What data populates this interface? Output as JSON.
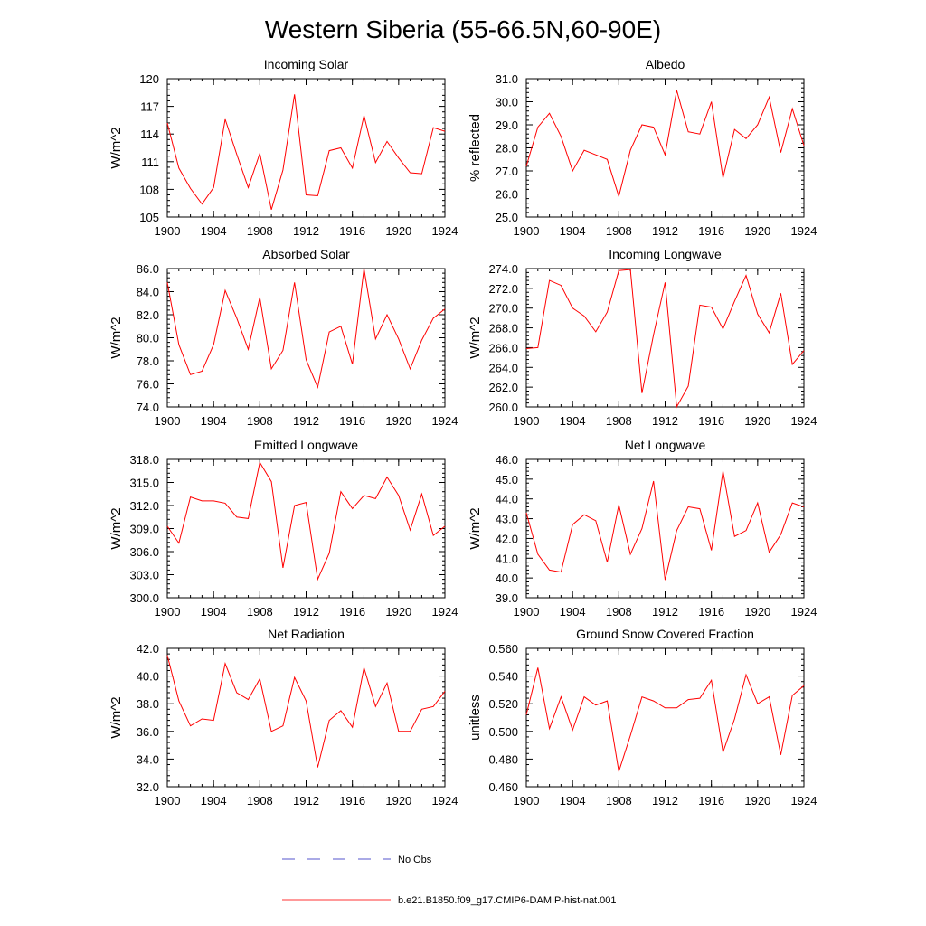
{
  "figure": {
    "title": "Western Siberia (55-66.5N,60-90E)",
    "legend": [
      {
        "label": "No Obs",
        "color": "#5555cc",
        "style": "dashed"
      },
      {
        "label": "b.e21.B1850.f09_g17.CMIP6-DAMIP-hist-nat.001",
        "color": "#ff3333",
        "style": "solid"
      }
    ]
  },
  "chart_data": [
    {
      "type": "line",
      "title": "Incoming Solar",
      "ylabel": "W/m^2",
      "xlim": [
        1900,
        1924
      ],
      "ylim": [
        105,
        120
      ],
      "yticks": [
        "105",
        "108",
        "111",
        "114",
        "117",
        "120"
      ],
      "xticks": [
        "1900",
        "1904",
        "1908",
        "1912",
        "1916",
        "1920",
        "1924"
      ],
      "color": "#ff0000",
      "x": [
        1900,
        1901,
        1902,
        1903,
        1904,
        1905,
        1906,
        1907,
        1908,
        1909,
        1910,
        1911,
        1912,
        1913,
        1914,
        1915,
        1916,
        1917,
        1918,
        1919,
        1920,
        1921,
        1922,
        1923,
        1924
      ],
      "y": [
        115.2,
        110.3,
        108.1,
        106.4,
        108.2,
        115.6,
        111.8,
        108.2,
        111.9,
        105.8,
        110.1,
        118.3,
        107.4,
        107.3,
        112.2,
        112.5,
        110.3,
        116.0,
        110.9,
        113.2,
        111.4,
        109.8,
        109.7,
        114.7,
        114.3
      ]
    },
    {
      "type": "line",
      "title": "Albedo",
      "ylabel": "% reflected",
      "xlim": [
        1900,
        1924
      ],
      "ylim": [
        25.0,
        31.0
      ],
      "yticks": [
        "25.0",
        "26.0",
        "27.0",
        "28.0",
        "29.0",
        "30.0",
        "31.0"
      ],
      "xticks": [
        "1900",
        "1904",
        "1908",
        "1912",
        "1916",
        "1920",
        "1924"
      ],
      "color": "#ff0000",
      "x": [
        1900,
        1901,
        1902,
        1903,
        1904,
        1905,
        1906,
        1907,
        1908,
        1909,
        1910,
        1911,
        1912,
        1913,
        1914,
        1915,
        1916,
        1917,
        1918,
        1919,
        1920,
        1921,
        1922,
        1923,
        1924
      ],
      "y": [
        27.2,
        28.9,
        29.5,
        28.5,
        27.0,
        27.9,
        27.7,
        27.5,
        25.9,
        27.9,
        29.0,
        28.9,
        27.7,
        30.5,
        28.7,
        28.6,
        30.0,
        26.7,
        28.8,
        28.4,
        29.0,
        30.2,
        27.8,
        29.7,
        28.1
      ]
    },
    {
      "type": "line",
      "title": "Absorbed Solar",
      "ylabel": "W/m^2",
      "xlim": [
        1900,
        1924
      ],
      "ylim": [
        74.0,
        86.0
      ],
      "yticks": [
        "74.0",
        "76.0",
        "78.0",
        "80.0",
        "82.0",
        "84.0",
        "86.0"
      ],
      "xticks": [
        "1900",
        "1904",
        "1908",
        "1912",
        "1916",
        "1920",
        "1924"
      ],
      "color": "#ff0000",
      "x": [
        1900,
        1901,
        1902,
        1903,
        1904,
        1905,
        1906,
        1907,
        1908,
        1909,
        1910,
        1911,
        1912,
        1913,
        1914,
        1915,
        1916,
        1917,
        1918,
        1919,
        1920,
        1921,
        1922,
        1923,
        1924
      ],
      "y": [
        84.8,
        79.4,
        76.8,
        77.1,
        79.4,
        84.1,
        81.7,
        79.0,
        83.5,
        77.3,
        78.9,
        84.8,
        78.1,
        75.7,
        80.5,
        81.0,
        77.7,
        86.0,
        79.9,
        82.0,
        79.9,
        77.3,
        79.8,
        81.7,
        82.5
      ]
    },
    {
      "type": "line",
      "title": "Incoming Longwave",
      "ylabel": "W/m^2",
      "xlim": [
        1900,
        1924
      ],
      "ylim": [
        260.0,
        274.0
      ],
      "yticks": [
        "260.0",
        "262.0",
        "264.0",
        "266.0",
        "268.0",
        "270.0",
        "272.0",
        "274.0"
      ],
      "xticks": [
        "1900",
        "1904",
        "1908",
        "1912",
        "1916",
        "1920",
        "1924"
      ],
      "color": "#ff0000",
      "x": [
        1900,
        1901,
        1902,
        1903,
        1904,
        1905,
        1906,
        1907,
        1908,
        1909,
        1910,
        1911,
        1912,
        1913,
        1914,
        1915,
        1916,
        1917,
        1918,
        1919,
        1920,
        1921,
        1922,
        1923,
        1924
      ],
      "y": [
        265.9,
        266.0,
        272.8,
        272.3,
        270.0,
        269.2,
        267.6,
        269.6,
        273.8,
        273.9,
        261.4,
        267.3,
        272.6,
        260.0,
        262.1,
        270.3,
        270.1,
        267.9,
        270.7,
        273.3,
        269.4,
        267.5,
        271.5,
        264.3,
        265.7
      ]
    },
    {
      "type": "line",
      "title": "Emitted Longwave",
      "ylabel": "W/m^2",
      "xlim": [
        1900,
        1924
      ],
      "ylim": [
        300.0,
        318.0
      ],
      "yticks": [
        "300.0",
        "303.0",
        "306.0",
        "309.0",
        "312.0",
        "315.0",
        "318.0"
      ],
      "xticks": [
        "1900",
        "1904",
        "1908",
        "1912",
        "1916",
        "1920",
        "1924"
      ],
      "color": "#ff0000",
      "x": [
        1900,
        1901,
        1902,
        1903,
        1904,
        1905,
        1906,
        1907,
        1908,
        1909,
        1910,
        1911,
        1912,
        1913,
        1914,
        1915,
        1916,
        1917,
        1918,
        1919,
        1920,
        1921,
        1922,
        1923,
        1924
      ],
      "y": [
        309.3,
        307.1,
        313.1,
        312.6,
        312.6,
        312.3,
        310.5,
        310.3,
        317.6,
        315.1,
        303.9,
        312.0,
        312.4,
        302.4,
        305.8,
        313.8,
        311.6,
        313.3,
        312.9,
        315.7,
        313.3,
        308.8,
        313.5,
        308.1,
        309.3
      ]
    },
    {
      "type": "line",
      "title": "Net Longwave",
      "ylabel": "W/m^2",
      "xlim": [
        1900,
        1924
      ],
      "ylim": [
        39.0,
        46.0
      ],
      "yticks": [
        "39.0",
        "40.0",
        "41.0",
        "42.0",
        "43.0",
        "44.0",
        "45.0",
        "46.0"
      ],
      "xticks": [
        "1900",
        "1904",
        "1908",
        "1912",
        "1916",
        "1920",
        "1924"
      ],
      "color": "#ff0000",
      "x": [
        1900,
        1901,
        1902,
        1903,
        1904,
        1905,
        1906,
        1907,
        1908,
        1909,
        1910,
        1911,
        1912,
        1913,
        1914,
        1915,
        1916,
        1917,
        1918,
        1919,
        1920,
        1921,
        1922,
        1923,
        1924
      ],
      "y": [
        43.3,
        41.2,
        40.4,
        40.3,
        42.7,
        43.2,
        42.9,
        40.8,
        43.7,
        41.2,
        42.5,
        44.9,
        39.9,
        42.4,
        43.6,
        43.5,
        41.4,
        45.4,
        42.1,
        42.4,
        43.8,
        41.3,
        42.2,
        43.8,
        43.6
      ]
    },
    {
      "type": "line",
      "title": "Net Radiation",
      "ylabel": "W/m^2",
      "xlim": [
        1900,
        1924
      ],
      "ylim": [
        32.0,
        42.0
      ],
      "yticks": [
        "32.0",
        "34.0",
        "36.0",
        "38.0",
        "40.0",
        "42.0"
      ],
      "xticks": [
        "1900",
        "1904",
        "1908",
        "1912",
        "1916",
        "1920",
        "1924"
      ],
      "color": "#ff0000",
      "x": [
        1900,
        1901,
        1902,
        1903,
        1904,
        1905,
        1906,
        1907,
        1908,
        1909,
        1910,
        1911,
        1912,
        1913,
        1914,
        1915,
        1916,
        1917,
        1918,
        1919,
        1920,
        1921,
        1922,
        1923,
        1924
      ],
      "y": [
        41.5,
        38.2,
        36.4,
        36.9,
        36.8,
        40.9,
        38.8,
        38.3,
        39.8,
        36.0,
        36.4,
        39.9,
        38.2,
        33.4,
        36.8,
        37.5,
        36.3,
        40.6,
        37.8,
        39.5,
        36.0,
        36.0,
        37.6,
        37.8,
        38.9
      ]
    },
    {
      "type": "line",
      "title": "Ground Snow Covered Fraction",
      "ylabel": "unitless",
      "xlim": [
        1900,
        1924
      ],
      "ylim": [
        0.46,
        0.56
      ],
      "yticks": [
        "0.460",
        "0.480",
        "0.500",
        "0.520",
        "0.540",
        "0.560"
      ],
      "xticks": [
        "1900",
        "1904",
        "1908",
        "1912",
        "1916",
        "1920",
        "1924"
      ],
      "color": "#ff0000",
      "x": [
        1900,
        1901,
        1902,
        1903,
        1904,
        1905,
        1906,
        1907,
        1908,
        1909,
        1910,
        1911,
        1912,
        1913,
        1914,
        1915,
        1916,
        1917,
        1918,
        1919,
        1920,
        1921,
        1922,
        1923,
        1924
      ],
      "y": [
        0.512,
        0.546,
        0.502,
        0.525,
        0.501,
        0.525,
        0.519,
        0.522,
        0.471,
        0.497,
        0.525,
        0.522,
        0.517,
        0.517,
        0.523,
        0.524,
        0.537,
        0.485,
        0.509,
        0.541,
        0.52,
        0.525,
        0.483,
        0.526,
        0.533
      ]
    }
  ]
}
